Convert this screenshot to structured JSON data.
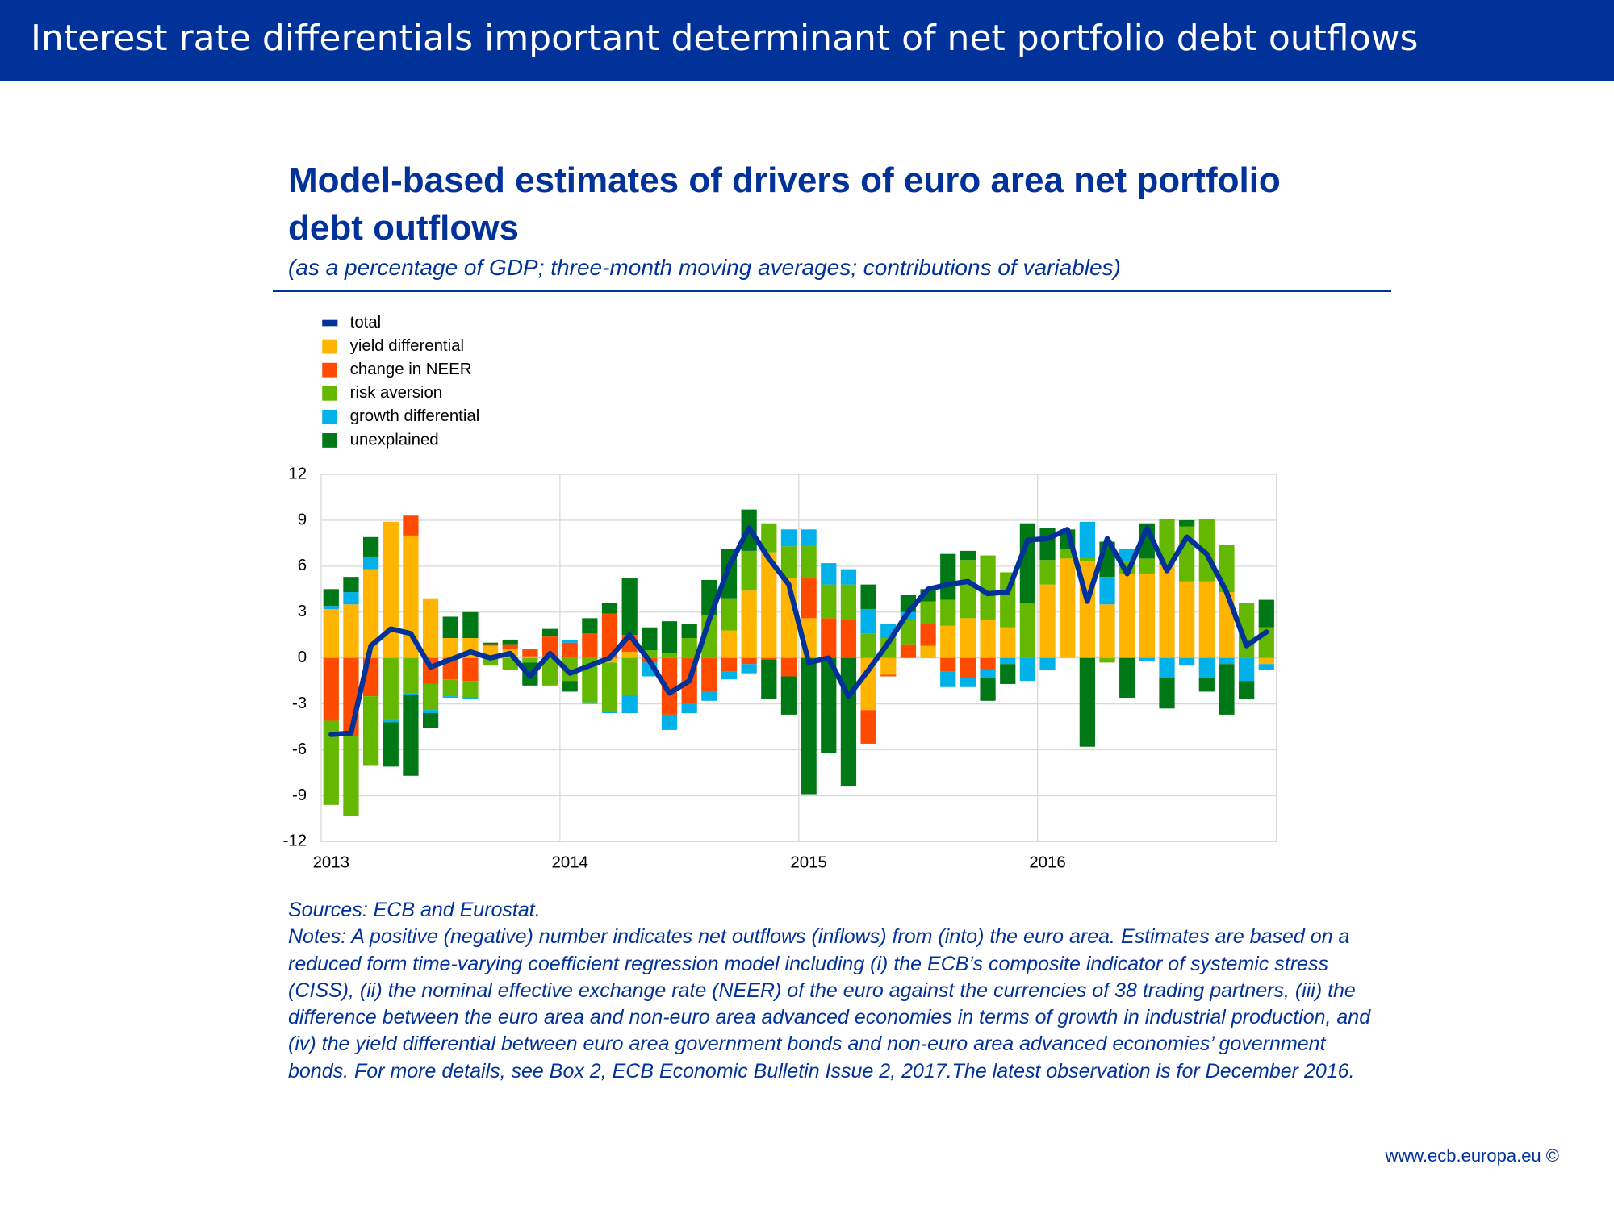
{
  "header": {
    "title": "Interest rate differentials important determinant of net portfolio debt outflows"
  },
  "chart_data": {
    "type": "bar",
    "stacked": true,
    "title": "Model-based estimates of drivers of euro area net portfolio debt outflows",
    "subtitle": "(as a percentage of GDP; three-month moving averages; contributions of variables)",
    "categories": [
      "2013",
      null,
      null,
      null,
      null,
      null,
      null,
      null,
      null,
      null,
      null,
      null,
      "2014",
      null,
      null,
      null,
      null,
      null,
      null,
      null,
      null,
      null,
      null,
      null,
      "2015",
      null,
      null,
      null,
      null,
      null,
      null,
      null,
      null,
      null,
      null,
      null,
      "2016",
      null,
      null,
      null,
      null,
      null,
      null,
      null,
      null,
      null,
      null,
      null
    ],
    "series": [
      {
        "name": "total",
        "type": "line",
        "color": "#003299",
        "values": [
          -5.0,
          -4.9,
          0.8,
          1.9,
          1.6,
          -0.6,
          -0.1,
          0.4,
          0.0,
          0.3,
          -1.2,
          0.3,
          -1.0,
          -0.5,
          0.0,
          1.5,
          -0.2,
          -2.3,
          -1.5,
          2.5,
          6.0,
          8.5,
          6.5,
          4.8,
          -0.3,
          0.0,
          -2.5,
          -0.8,
          1.0,
          3.0,
          4.5,
          4.8,
          5.0,
          4.2,
          4.3,
          7.7,
          7.8,
          8.4,
          3.7,
          7.8,
          5.5,
          8.5,
          5.7,
          7.9,
          6.8,
          4.3,
          0.8,
          1.7
        ]
      },
      {
        "name": "yield differential",
        "color": "#ffb400",
        "values": [
          3.2,
          3.5,
          5.8,
          8.9,
          8.0,
          3.9,
          1.3,
          1.3,
          0.8,
          0.6,
          0.1,
          0.1,
          0.0,
          0.0,
          -0.3,
          0.4,
          0.0,
          0.0,
          0.0,
          0.0,
          1.8,
          4.4,
          6.9,
          5.2,
          2.6,
          0.0,
          0.0,
          -3.4,
          -1.1,
          0.0,
          0.8,
          2.1,
          2.6,
          2.5,
          2.0,
          0.0,
          4.8,
          6.5,
          6.3,
          3.5,
          5.5,
          5.5,
          6.1,
          5.0,
          5.0,
          4.3,
          0.0,
          -0.4
        ]
      },
      {
        "name": "change in NEER",
        "color": "#ff4b00",
        "values": [
          -4.1,
          -5.1,
          -2.5,
          0.0,
          1.3,
          -1.7,
          -1.4,
          -1.5,
          0.1,
          0.3,
          0.5,
          1.3,
          1.0,
          1.6,
          2.9,
          1.1,
          -0.3,
          -3.7,
          -3.0,
          -2.2,
          -0.9,
          -0.4,
          -0.1,
          -1.2,
          2.6,
          2.6,
          2.5,
          -2.2,
          -0.1,
          0.9,
          1.4,
          -0.9,
          -1.3,
          -0.8,
          0.0,
          0.0,
          0.0,
          0.0,
          0.0,
          0.0,
          0.0,
          0.0,
          0.0,
          0.0,
          0.0,
          0.0,
          0.0,
          0.0
        ]
      },
      {
        "name": "risk aversion",
        "color": "#65b800",
        "values": [
          -5.5,
          -5.2,
          -4.5,
          -4.0,
          -2.3,
          -1.7,
          -1.1,
          -1.1,
          -0.5,
          -0.8,
          -0.3,
          -1.8,
          -1.5,
          -2.9,
          -3.2,
          -2.4,
          0.5,
          0.3,
          1.3,
          2.8,
          2.1,
          2.6,
          1.9,
          2.1,
          2.2,
          2.2,
          2.3,
          1.6,
          1.3,
          1.6,
          1.5,
          1.7,
          3.8,
          4.2,
          3.6,
          3.6,
          1.6,
          0.6,
          0.3,
          -0.3,
          0.8,
          1.0,
          3.0,
          3.6,
          4.1,
          3.1,
          3.6,
          2.0
        ]
      },
      {
        "name": "growth differential",
        "color": "#00b1ea",
        "values": [
          0.2,
          0.8,
          0.8,
          -0.2,
          -0.1,
          -0.2,
          -0.1,
          -0.1,
          0.0,
          0.0,
          0.0,
          0.0,
          0.2,
          -0.1,
          -0.1,
          -1.2,
          -0.9,
          -1.0,
          -0.6,
          -0.6,
          -0.5,
          -0.6,
          0.0,
          1.1,
          1.0,
          1.4,
          1.0,
          1.6,
          0.9,
          0.5,
          0.0,
          -1.0,
          -0.6,
          -0.5,
          -0.4,
          -1.5,
          -0.8,
          0.0,
          2.3,
          1.8,
          0.8,
          -0.2,
          -1.3,
          -0.5,
          -1.3,
          -0.4,
          -1.5,
          -0.4
        ]
      },
      {
        "name": "unexplained",
        "color": "#007816",
        "values": [
          1.1,
          1.0,
          1.3,
          -2.9,
          -5.3,
          -1.0,
          1.4,
          1.7,
          0.1,
          0.3,
          -1.5,
          0.5,
          -0.7,
          1.0,
          0.7,
          3.7,
          1.5,
          2.1,
          0.9,
          2.3,
          3.2,
          2.7,
          -2.6,
          -2.5,
          -8.9,
          -6.2,
          -8.4,
          1.6,
          0.0,
          1.1,
          0.8,
          3.0,
          0.6,
          -1.5,
          -1.3,
          5.2,
          2.1,
          1.3,
          -5.8,
          2.3,
          -2.6,
          2.3,
          -2.0,
          0.4,
          -0.9,
          -3.3,
          -1.2,
          1.8
        ]
      }
    ],
    "ylim": [
      -12,
      12
    ],
    "yticks": [
      -12,
      -9,
      -6,
      -3,
      0,
      3,
      6,
      9,
      12
    ],
    "grid": true,
    "legend": "top-left"
  },
  "notes": {
    "sources": "Sources: ECB and Eurostat.",
    "text": "Notes: A positive (negative) number indicates net outflows (inflows) from (into) the euro area. Estimates are based on a reduced form time-varying coefficient regression model including (i) the ECB’s composite indicator of systemic stress (CISS), (ii) the nominal effective exchange rate (NEER) of the euro against the currencies of 38 trading partners, (iii) the difference between the euro area and non-euro area advanced economies in terms of growth in industrial production, and (iv) the yield differential between euro area government bonds and non-euro area advanced economies’ government bonds. For more details, see Box 2, ECB Economic Bulletin Issue 2, 2017.The latest observation is for December 2016."
  },
  "footer": {
    "text": "www.ecb.europa.eu ©"
  }
}
